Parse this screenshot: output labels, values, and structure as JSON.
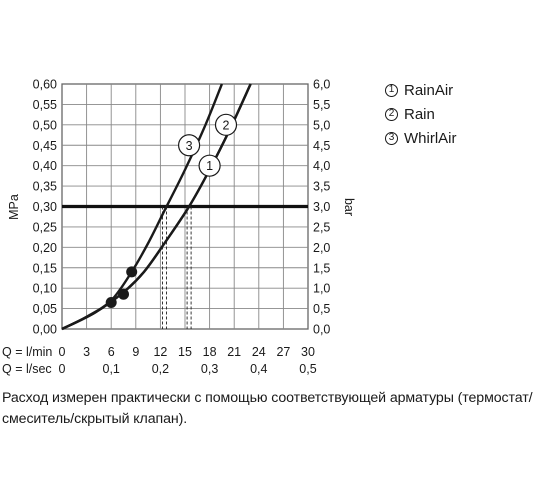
{
  "chart_data": {
    "type": "line",
    "left_axis": {
      "label": "MPa",
      "ticks": [
        "0,00",
        "0,05",
        "0,10",
        "0,15",
        "0,20",
        "0,25",
        "0,30",
        "0,35",
        "0,40",
        "0,45",
        "0,50",
        "0,55",
        "0,60"
      ],
      "range": [
        0,
        0.6
      ]
    },
    "right_axis": {
      "label": "bar",
      "ticks": [
        "0,0",
        "0,5",
        "1,0",
        "1,5",
        "2,0",
        "2,5",
        "3,0",
        "3,5",
        "4,0",
        "4,5",
        "5,0",
        "5,5",
        "6,0"
      ],
      "range": [
        0,
        6
      ]
    },
    "x_axis": {
      "range": [
        0,
        30
      ],
      "row1_label": "Q = l/min",
      "row1_ticks": [
        "0",
        "3",
        "6",
        "9",
        "12",
        "15",
        "18",
        "21",
        "24",
        "27",
        "30"
      ],
      "row2_label": "Q = l/sec",
      "row2_ticks": [
        "0",
        "0,1",
        "0,2",
        "0,3",
        "0,4",
        "0,5"
      ]
    },
    "reference_line": {
      "y": 0.3
    },
    "series": [
      {
        "name": "RainAir",
        "marker": "1",
        "x": [
          0,
          4,
          7.5,
          10,
          12.5,
          15.5,
          18,
          20.5,
          23
        ],
        "y": [
          0,
          0.04,
          0.09,
          0.14,
          0.21,
          0.3,
          0.39,
          0.49,
          0.6
        ],
        "label_at": [
          18,
          0.4
        ]
      },
      {
        "name": "Rain",
        "marker": "2",
        "x": [
          0,
          4,
          7.5,
          10,
          12.5,
          15.5,
          18,
          20.5,
          23
        ],
        "y": [
          0,
          0.04,
          0.09,
          0.14,
          0.21,
          0.3,
          0.39,
          0.49,
          0.6
        ],
        "label_at": [
          20,
          0.5
        ]
      },
      {
        "name": "WhirlAir",
        "marker": "3",
        "x": [
          0,
          3,
          6,
          8.5,
          10.5,
          12.5,
          15,
          17.5,
          19.5
        ],
        "y": [
          0,
          0.03,
          0.07,
          0.14,
          0.21,
          0.29,
          0.39,
          0.5,
          0.6
        ],
        "label_at": [
          15.5,
          0.45
        ]
      }
    ],
    "flow_markers": [
      {
        "x": 12.5,
        "y": 0.3
      },
      {
        "x": 15.5,
        "y": 0.3
      }
    ],
    "points": [
      {
        "x": 8.5,
        "y": 0.14
      },
      {
        "x": 7.5,
        "y": 0.085
      },
      {
        "x": 6,
        "y": 0.065
      }
    ],
    "grid": true
  },
  "legend": [
    {
      "marker": "1",
      "name": "RainAir"
    },
    {
      "marker": "2",
      "name": "Rain"
    },
    {
      "marker": "3",
      "name": "WhirlAir"
    }
  ],
  "caption": "Расход измерен практически с помощью соответствующей арматуры (термостат/смеситель/скрытый клапан)."
}
